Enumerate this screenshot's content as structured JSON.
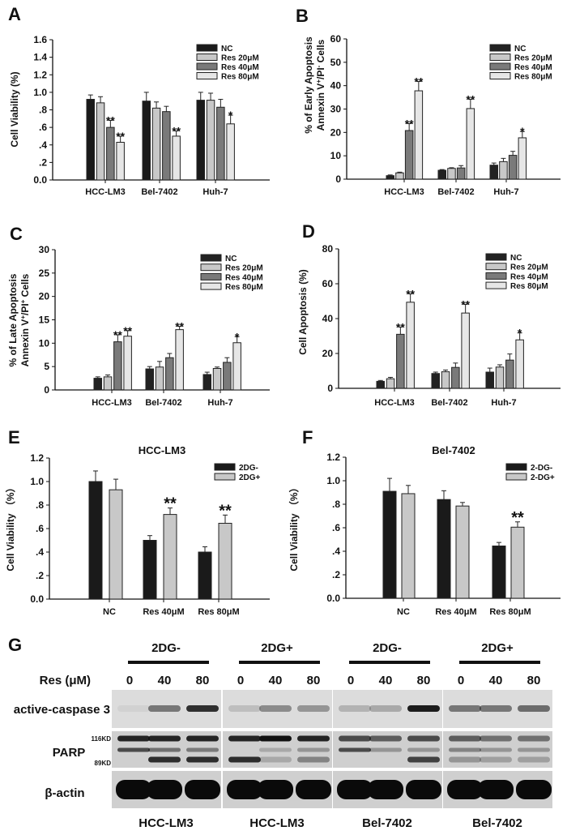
{
  "chart_data": [
    {
      "id": "A",
      "type": "bar",
      "panel_letter": "A",
      "title": "",
      "xlabel": "",
      "ylabel": "Cell Viability (%)",
      "categories": [
        "HCC-LM3",
        "Bel-7402",
        "Huh-7"
      ],
      "ylim": [
        0,
        1.6
      ],
      "yticks": [
        "0.0",
        ".2",
        ".4",
        ".6",
        ".8",
        "1.0",
        "1.2",
        "1.4",
        "1.6"
      ],
      "legend_position": "top-right",
      "series": [
        {
          "name": "NC",
          "color": "#1a1a1a",
          "values": [
            0.92,
            0.9,
            0.91
          ],
          "errors": [
            0.05,
            0.1,
            0.09
          ],
          "sig": [
            "",
            "",
            ""
          ]
        },
        {
          "name": "Res 20μM",
          "color": "#c8c8c8",
          "values": [
            0.88,
            0.82,
            0.91
          ],
          "errors": [
            0.07,
            0.07,
            0.08
          ],
          "sig": [
            "",
            "",
            ""
          ]
        },
        {
          "name": "Res 40μM",
          "color": "#7a7a7a",
          "values": [
            0.6,
            0.78,
            0.83
          ],
          "errors": [
            0.08,
            0.06,
            0.09
          ],
          "sig": [
            "**",
            "",
            ""
          ]
        },
        {
          "name": "Res 80μM",
          "color": "#e6e6e6",
          "values": [
            0.43,
            0.5,
            0.64
          ],
          "errors": [
            0.07,
            0.06,
            0.1
          ],
          "sig": [
            "**",
            "**",
            "*"
          ]
        }
      ]
    },
    {
      "id": "B",
      "type": "bar",
      "panel_letter": "B",
      "title": "",
      "xlabel": "",
      "ylabel": [
        "% of Early Apoptosis",
        "Annexin V",
        "+",
        "/PI",
        "-",
        " Cells"
      ],
      "categories": [
        "HCC-LM3",
        "Bel-7402",
        "Huh-7"
      ],
      "ylim": [
        0,
        60
      ],
      "yticks": [
        "0",
        "10",
        "20",
        "30",
        "40",
        "50",
        "60"
      ],
      "legend_position": "top-right",
      "series": [
        {
          "name": "NC",
          "color": "#222222",
          "values": [
            1.5,
            3.8,
            6.0
          ],
          "errors": [
            0.3,
            0.3,
            0.9
          ],
          "sig": [
            "",
            "",
            ""
          ]
        },
        {
          "name": "Res 20μM",
          "color": "#c8c8c8",
          "values": [
            2.7,
            4.6,
            7.5
          ],
          "errors": [
            0.3,
            0.3,
            1.4
          ],
          "sig": [
            "",
            "",
            ""
          ]
        },
        {
          "name": "Res 40μM",
          "color": "#7a7a7a",
          "values": [
            20.8,
            4.8,
            10.2
          ],
          "errors": [
            3.0,
            1.0,
            1.7
          ],
          "sig": [
            "**",
            "",
            ""
          ]
        },
        {
          "name": "Res 80μM",
          "color": "#e6e6e6",
          "values": [
            37.8,
            30.2,
            17.7
          ],
          "errors": [
            4.0,
            4.0,
            2.7
          ],
          "sig": [
            "**",
            "**",
            "*"
          ]
        }
      ]
    },
    {
      "id": "C",
      "type": "bar",
      "panel_letter": "C",
      "title": "",
      "xlabel": "",
      "ylabel": [
        "% of Late Apoptosis",
        "Annexin V",
        "+",
        "/PI",
        "+",
        " Cells"
      ],
      "categories": [
        "HCC-LM3",
        "Bel-7402",
        "Huh-7"
      ],
      "ylim": [
        0,
        30
      ],
      "yticks": [
        "0",
        "5",
        "10",
        "15",
        "20",
        "25",
        "30"
      ],
      "legend_position": "top-right",
      "series": [
        {
          "name": "NC",
          "color": "#222222",
          "values": [
            2.5,
            4.5,
            3.3
          ],
          "errors": [
            0.3,
            0.5,
            0.5
          ],
          "sig": [
            "",
            "",
            ""
          ]
        },
        {
          "name": "Res 20μM",
          "color": "#c8c8c8",
          "values": [
            2.8,
            4.9,
            4.6
          ],
          "errors": [
            0.4,
            1.2,
            0.3
          ],
          "sig": [
            "",
            "",
            ""
          ]
        },
        {
          "name": "Res 40μM",
          "color": "#7a7a7a",
          "values": [
            10.3,
            6.9,
            5.9
          ],
          "errors": [
            1.5,
            0.9,
            1.0
          ],
          "sig": [
            "**",
            "",
            ""
          ]
        },
        {
          "name": "Res 80μM",
          "color": "#e6e6e6",
          "values": [
            11.5,
            12.9,
            10.1
          ],
          "errors": [
            1.2,
            0.7,
            1.3
          ],
          "sig": [
            "**",
            "**",
            "*"
          ]
        }
      ]
    },
    {
      "id": "D",
      "type": "bar",
      "panel_letter": "D",
      "title": "",
      "xlabel": "",
      "ylabel": "Cell Apoptosis (%)",
      "categories": [
        "HCC-LM3",
        "Bel-7402",
        "Huh-7"
      ],
      "ylim": [
        0,
        80
      ],
      "yticks": [
        "0",
        "20",
        "40",
        "60",
        "80"
      ],
      "legend_position": "top-right",
      "series": [
        {
          "name": "NC",
          "color": "#222222",
          "values": [
            4.0,
            8.5,
            9.3
          ],
          "errors": [
            0.5,
            0.8,
            2.3
          ],
          "sig": [
            "",
            "",
            ""
          ]
        },
        {
          "name": "Res 20μM",
          "color": "#c8c8c8",
          "values": [
            5.5,
            9.5,
            12.2
          ],
          "errors": [
            0.8,
            1.0,
            1.3
          ],
          "sig": [
            "",
            "",
            ""
          ]
        },
        {
          "name": "Res 40μM",
          "color": "#7a7a7a",
          "values": [
            31.0,
            12.0,
            16.2
          ],
          "errors": [
            4.2,
            2.5,
            3.5
          ],
          "sig": [
            "**",
            "",
            ""
          ]
        },
        {
          "name": "Res 80μM",
          "color": "#e6e6e6",
          "values": [
            49.4,
            43.2,
            27.8
          ],
          "errors": [
            4.8,
            5.0,
            4.0
          ],
          "sig": [
            "**",
            "**",
            "*"
          ]
        }
      ]
    },
    {
      "id": "E",
      "type": "bar",
      "panel_letter": "E",
      "title": "HCC-LM3",
      "xlabel": "",
      "ylabel": "Cell Viability （%）",
      "categories": [
        "NC",
        "Res 40μM",
        "Res 80μM"
      ],
      "ylim": [
        0,
        1.2
      ],
      "yticks": [
        "0.0",
        ".2",
        ".4",
        ".6",
        ".8",
        "1.0",
        "1.2"
      ],
      "legend_position": "top-right",
      "series": [
        {
          "name": "2DG-",
          "color": "#1a1a1a",
          "values": [
            1.0,
            0.5,
            0.4
          ],
          "errors": [
            0.09,
            0.04,
            0.045
          ],
          "sig": [
            "",
            "",
            ""
          ]
        },
        {
          "name": "2DG+",
          "color": "#c8c8c8",
          "values": [
            0.93,
            0.72,
            0.645
          ],
          "errors": [
            0.09,
            0.055,
            0.07
          ],
          "sig": [
            "",
            "**",
            "**"
          ]
        }
      ]
    },
    {
      "id": "F",
      "type": "bar",
      "panel_letter": "F",
      "title": "Bel-7402",
      "xlabel": "",
      "ylabel": "Cell Viability （%）",
      "categories": [
        "NC",
        "Res 40μM",
        "Res 80μM"
      ],
      "ylim": [
        0,
        1.2
      ],
      "yticks": [
        "0.0",
        ".2",
        ".4",
        ".6",
        ".8",
        "1.0",
        "1.2"
      ],
      "legend_position": "top-right",
      "series": [
        {
          "name": "2-DG-",
          "color": "#1a1a1a",
          "values": [
            0.91,
            0.84,
            0.445
          ],
          "errors": [
            0.11,
            0.075,
            0.03
          ],
          "sig": [
            "",
            "",
            ""
          ]
        },
        {
          "name": "2-DG+",
          "color": "#c8c8c8",
          "values": [
            0.89,
            0.785,
            0.605
          ],
          "errors": [
            0.07,
            0.03,
            0.045
          ],
          "sig": [
            "",
            "",
            "**"
          ]
        }
      ]
    }
  ],
  "blot": {
    "panel_letter": "G",
    "groups": [
      "2DG-",
      "2DG+",
      "2DG-",
      "2DG+"
    ],
    "dose_label": "Res (μM)",
    "doses": [
      "0",
      "40",
      "80"
    ],
    "rows": [
      "active-caspase 3",
      "PARP",
      "β-actin"
    ],
    "markers": [
      "116KD",
      "89KD"
    ],
    "cell_lines": [
      "HCC-LM3",
      "HCC-LM3",
      "Bel-7402",
      "Bel-7402"
    ]
  }
}
